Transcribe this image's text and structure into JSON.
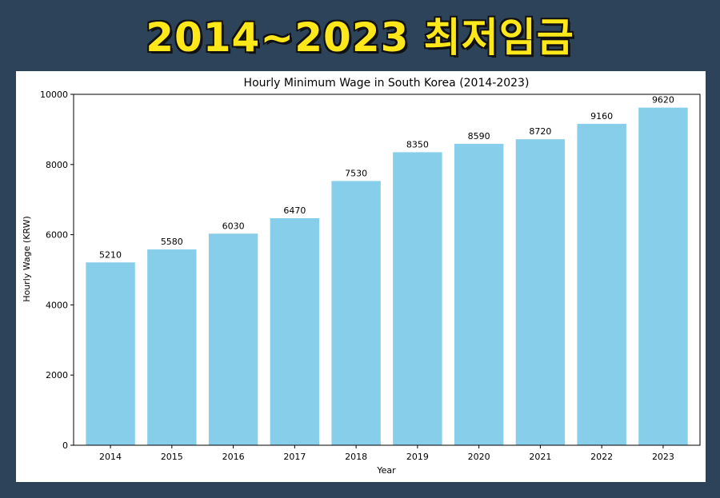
{
  "banner": {
    "title": "2014~2023 최저임금"
  },
  "chart_data": {
    "type": "bar",
    "title": "Hourly Minimum Wage in South Korea (2014-2023)",
    "xlabel": "Year",
    "ylabel": "Hourly Wage (KRW)",
    "categories": [
      "2014",
      "2015",
      "2016",
      "2017",
      "2018",
      "2019",
      "2020",
      "2021",
      "2022",
      "2023"
    ],
    "values": [
      5210,
      5580,
      6030,
      6470,
      7530,
      8350,
      8590,
      8720,
      9160,
      9620
    ],
    "ylim": [
      0,
      10000
    ],
    "yticks": [
      0,
      2000,
      4000,
      6000,
      8000,
      10000
    ],
    "bar_color": "#87ceeb",
    "grid": false,
    "data_labels": true
  }
}
